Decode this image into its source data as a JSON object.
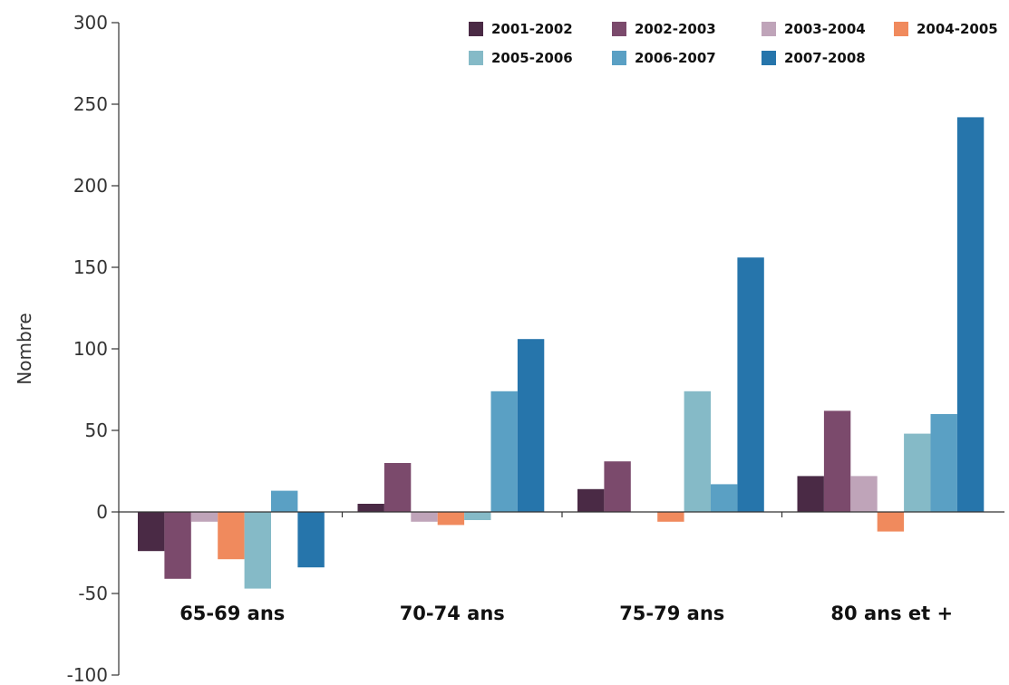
{
  "chart_data": {
    "type": "bar",
    "title": "",
    "xlabel": "",
    "ylabel": "Nombre",
    "ylim": [
      -100,
      300
    ],
    "yticks": [
      -100,
      -50,
      0,
      50,
      100,
      150,
      200,
      250,
      300
    ],
    "grid": false,
    "legend_position": "top-right",
    "categories": [
      "65-69 ans",
      "70-74 ans",
      "75-79 ans",
      "80 ans et +"
    ],
    "series": [
      {
        "name": "2001-2002",
        "color": "#4a2a45",
        "values": [
          -24,
          5,
          14,
          22
        ]
      },
      {
        "name": "2002-2003",
        "color": "#7b4a6c",
        "values": [
          -41,
          30,
          31,
          62
        ]
      },
      {
        "name": "2003-2004",
        "color": "#bfa4b9",
        "values": [
          -6,
          -6,
          0,
          22
        ]
      },
      {
        "name": "2004-2005",
        "color": "#f08a5d",
        "values": [
          -29,
          -8,
          -6,
          -12
        ]
      },
      {
        "name": "2005-2006",
        "color": "#85bac7",
        "values": [
          -47,
          -5,
          74,
          48
        ]
      },
      {
        "name": "2006-2007",
        "color": "#5aa0c4",
        "values": [
          13,
          74,
          17,
          60
        ]
      },
      {
        "name": "2007-2008",
        "color": "#2675ab",
        "values": [
          -34,
          106,
          156,
          242
        ]
      }
    ]
  }
}
